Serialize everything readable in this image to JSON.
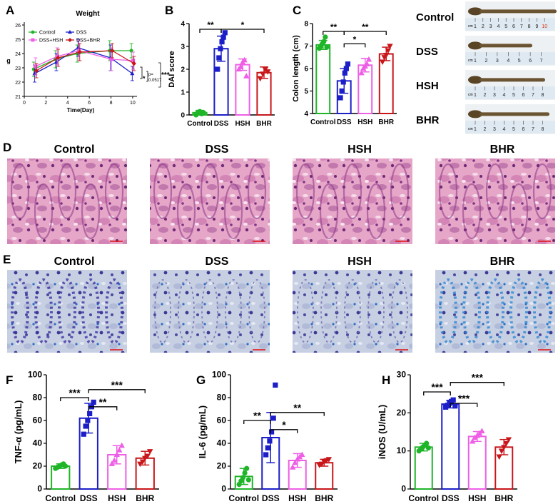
{
  "colors": {
    "control": "#1fb528",
    "dss": "#1c1fc8",
    "hsh": "#ee5fe6",
    "bhr": "#c8161a",
    "axis": "#000000",
    "scale_bar": "#dd1111",
    "he_base": "#e9a9cb",
    "he_dark": "#8b3c86",
    "ab_base": "#cbd3e6",
    "ab_dark": "#3a3d98",
    "ab_blue": "#2d86d0",
    "ruler": "#dfe9f2",
    "photo_bg": "#eef1f3",
    "colon_tissue": "#6b5432"
  },
  "panel_letters": {
    "a": "A",
    "b": "B",
    "c": "C",
    "d": "D",
    "e": "E",
    "f": "F",
    "g": "G",
    "h": "H"
  },
  "charts": {
    "weight": {
      "type": "line",
      "title": "Weight",
      "xlabel": "Time(Day)",
      "ylabel": "g",
      "x": [
        1,
        3,
        5,
        8,
        10
      ],
      "xlim": [
        0,
        10.4
      ],
      "ylim": [
        21,
        26
      ],
      "xticks": [
        0,
        2,
        4,
        6,
        8,
        10
      ],
      "yticks": [
        21,
        22,
        23,
        24,
        25,
        26
      ],
      "series": [
        {
          "name": "Control",
          "key": "control",
          "marker": "circle",
          "values": [
            22.9,
            23.6,
            24.0,
            24.2,
            24.2
          ],
          "err": [
            0.5,
            0.6,
            0.6,
            0.7,
            0.5
          ]
        },
        {
          "name": "DSS",
          "key": "dss",
          "marker": "triangle",
          "values": [
            22.6,
            23.4,
            24.4,
            23.7,
            22.6
          ],
          "err": [
            0.6,
            0.6,
            0.6,
            0.9,
            0.5
          ]
        },
        {
          "name": "DSS+HSH",
          "key": "hsh",
          "marker": "square",
          "values": [
            23.1,
            23.8,
            24.2,
            23.6,
            23.5
          ],
          "err": [
            0.6,
            0.6,
            0.7,
            0.8,
            0.6
          ]
        },
        {
          "name": "DSS+BHR",
          "key": "bhr",
          "marker": "diamond",
          "values": [
            22.8,
            23.7,
            24.1,
            24.2,
            23.3
          ],
          "err": [
            0.5,
            0.6,
            0.6,
            0.5,
            0.5
          ]
        }
      ],
      "annotations": [
        "*",
        "p=",
        "0.0517",
        "***"
      ]
    },
    "dai": {
      "type": "bar",
      "ylabel": "DAI score",
      "ylim": [
        0,
        4
      ],
      "yticks": [
        0,
        1,
        2,
        3,
        4
      ],
      "categories": [
        "Control",
        "DSS",
        "HSH",
        "BHR"
      ],
      "keys": [
        "control",
        "dss",
        "hsh",
        "bhr"
      ],
      "markers": [
        "circle",
        "square",
        "triangle",
        "triangle-down"
      ],
      "values": [
        0.1,
        2.9,
        2.2,
        1.85
      ],
      "err": [
        0.1,
        0.55,
        0.25,
        0.25
      ],
      "points": [
        [
          0,
          0.1,
          0.15,
          0.05,
          0.1
        ],
        [
          2.0,
          2.5,
          2.9,
          3.2,
          3.4,
          3.6
        ],
        [
          2.0,
          2.1,
          2.3,
          2.4,
          1.7
        ],
        [
          1.6,
          1.8,
          2.0,
          1.9
        ]
      ],
      "sig": [
        {
          "from": 0,
          "to": 1,
          "label": "**",
          "level": 3.75
        },
        {
          "from": 1,
          "to": 3,
          "label": "*",
          "level": 3.75
        }
      ]
    },
    "colon": {
      "type": "bar",
      "ylabel": "Colon length (cm)",
      "ylim": [
        4,
        8
      ],
      "yticks": [
        4,
        5,
        6,
        7,
        8
      ],
      "categories": [
        "Control",
        "DSS",
        "HSH",
        "BHR"
      ],
      "keys": [
        "control",
        "dss",
        "hsh",
        "bhr"
      ],
      "markers": [
        "circle",
        "square",
        "triangle",
        "triangle-down"
      ],
      "values": [
        7.05,
        5.45,
        6.15,
        6.65
      ],
      "err": [
        0.2,
        0.55,
        0.3,
        0.3
      ],
      "points": [
        [
          6.9,
          7.0,
          7.1,
          7.2,
          7.4,
          6.95
        ],
        [
          4.7,
          5.0,
          5.4,
          5.8,
          6.0,
          6.2
        ],
        [
          5.8,
          6.0,
          6.1,
          6.2,
          6.4
        ],
        [
          6.3,
          6.5,
          6.6,
          6.8,
          7.0
        ]
      ],
      "sig": [
        {
          "from": 0,
          "to": 1,
          "label": "**",
          "level": 7.65
        },
        {
          "from": 1,
          "to": 2,
          "label": "*",
          "level": 7.1
        },
        {
          "from": 1,
          "to": 3,
          "label": "**",
          "level": 7.65
        }
      ]
    },
    "tnf": {
      "type": "bar",
      "ylabel": "TNF-α (pg/mL)",
      "ylim": [
        0,
        100
      ],
      "yticks": [
        0,
        20,
        40,
        60,
        80,
        100
      ],
      "categories": [
        "Control",
        "DSS",
        "HSH",
        "BHR"
      ],
      "keys": [
        "control",
        "dss",
        "hsh",
        "bhr"
      ],
      "markers": [
        "circle",
        "square",
        "triangle",
        "triangle-down"
      ],
      "values": [
        20,
        62,
        30,
        27
      ],
      "err": [
        2,
        13,
        8,
        6
      ],
      "points": [
        [
          18,
          19,
          20,
          21,
          22,
          20
        ],
        [
          48,
          55,
          60,
          66,
          72,
          76
        ],
        [
          22,
          25,
          30,
          34,
          38
        ],
        [
          22,
          24,
          27,
          29,
          33
        ]
      ],
      "sig": [
        {
          "from": 0,
          "to": 1,
          "label": "***",
          "level": 80
        },
        {
          "from": 1,
          "to": 2,
          "label": "**",
          "level": 72
        },
        {
          "from": 1,
          "to": 3,
          "label": "***",
          "level": 87
        }
      ]
    },
    "il6": {
      "type": "bar",
      "ylabel": "IL-6 (pg/mL)",
      "ylim": [
        0,
        100
      ],
      "yticks": [
        0,
        20,
        40,
        60,
        80,
        100
      ],
      "categories": [
        "Control",
        "DSS",
        "HSH",
        "BHR"
      ],
      "keys": [
        "control",
        "dss",
        "hsh",
        "bhr"
      ],
      "markers": [
        "circle",
        "square",
        "triangle",
        "triangle-down"
      ],
      "values": [
        11,
        45,
        25,
        23
      ],
      "err": [
        7,
        22,
        6,
        3
      ],
      "points": [
        [
          4,
          7,
          10,
          14,
          18,
          8
        ],
        [
          30,
          36,
          42,
          50,
          62,
          91
        ],
        [
          19,
          23,
          26,
          28,
          30
        ],
        [
          21,
          22,
          24,
          25,
          26
        ]
      ],
      "sig": [
        {
          "from": 0,
          "to": 1,
          "label": "**",
          "level": 60
        },
        {
          "from": 1,
          "to": 2,
          "label": "*",
          "level": 52
        },
        {
          "from": 1,
          "to": 3,
          "label": "**",
          "level": 67
        }
      ]
    },
    "inos": {
      "type": "bar",
      "ylabel": "iNOS (U/mL)",
      "ylim": [
        0,
        30
      ],
      "yticks": [
        0,
        10,
        20,
        30
      ],
      "categories": [
        "Control",
        "DSS",
        "HSH",
        "BHR"
      ],
      "keys": [
        "control",
        "dss",
        "hsh",
        "bhr"
      ],
      "markers": [
        "circle",
        "square",
        "triangle",
        "triangle-down"
      ],
      "values": [
        11,
        22.3,
        13.8,
        11
      ],
      "err": [
        1,
        1,
        1.3,
        2
      ],
      "points": [
        [
          10,
          10.5,
          11,
          11.5,
          12,
          10.8
        ],
        [
          21.5,
          22,
          22.5,
          23,
          23.4,
          21.8
        ],
        [
          12.5,
          13.5,
          14,
          14.6,
          15.2
        ],
        [
          8.5,
          10,
          11,
          12,
          13
        ]
      ],
      "sig": [
        {
          "from": 0,
          "to": 1,
          "label": "***",
          "level": 25.5
        },
        {
          "from": 1,
          "to": 2,
          "label": "***",
          "level": 22.5
        },
        {
          "from": 1,
          "to": 3,
          "label": "***",
          "level": 28
        }
      ]
    }
  },
  "photo_labels": [
    "Control",
    "DSS",
    "HSH",
    "BHR"
  ],
  "ruler_text": {
    "cm_label": "cm",
    "control": [
      "1",
      "2",
      "3",
      "4",
      "5",
      "6",
      "7",
      "8",
      "9",
      "10"
    ],
    "dss": [
      "1",
      "2",
      "3",
      "4",
      "5",
      "6",
      "7"
    ],
    "hsh": [
      "1",
      "2",
      "3",
      "4",
      "5",
      "6",
      "7",
      "8"
    ],
    "bhr": [
      "1",
      "2",
      "3",
      "4",
      "5",
      "6",
      "7",
      "8"
    ]
  },
  "histology_titles_d": [
    "Control",
    "DSS",
    "HSH",
    "BHR"
  ],
  "histology_titles_e": [
    "Control",
    "DSS",
    "HSH",
    "BHR"
  ]
}
